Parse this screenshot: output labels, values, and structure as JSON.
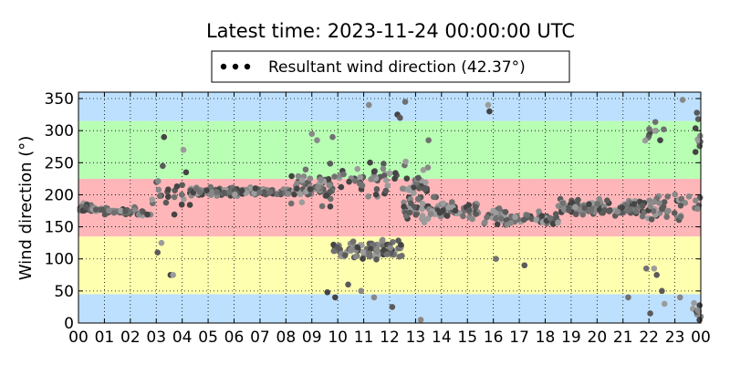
{
  "chart_data": {
    "type": "scatter",
    "title": "Latest time: 2023-11-24 00:00:00 UTC",
    "xlabel": "",
    "ylabel": "Wind direction (°)",
    "xlim": [
      0,
      24
    ],
    "ylim": [
      0,
      360
    ],
    "grid": true,
    "legend": {
      "placement": "top-center",
      "label": "Resultant wind direction (42.37°)"
    },
    "x_tick_labels": [
      "00",
      "01",
      "02",
      "03",
      "04",
      "05",
      "06",
      "07",
      "08",
      "09",
      "10",
      "11",
      "12",
      "13",
      "14",
      "15",
      "16",
      "17",
      "18",
      "19",
      "20",
      "21",
      "22",
      "23",
      "00"
    ],
    "y_ticks": [
      0,
      50,
      100,
      150,
      200,
      250,
      300,
      350
    ],
    "bands": [
      {
        "from": 0,
        "to": 45,
        "color": "#bde0fe"
      },
      {
        "from": 45,
        "to": 135,
        "color": "#ffffb0"
      },
      {
        "from": 135,
        "to": 225,
        "color": "#ffb6b9"
      },
      {
        "from": 225,
        "to": 315,
        "color": "#b8ffb4"
      },
      {
        "from": 315,
        "to": 360,
        "color": "#bde0fe"
      }
    ],
    "series": [
      {
        "name": "Resultant wind direction (42.37°)",
        "marker_colors": [
          "#444444",
          "#5a5a5a",
          "#707070",
          "#888888",
          "#9c9c9c"
        ],
        "clusters": [
          {
            "x": [
              0.0,
              0.6
            ],
            "y_center": 180,
            "y_spread": 12,
            "n": 40
          },
          {
            "x": [
              0.6,
              2.2
            ],
            "y_center": 175,
            "y_spread": 10,
            "n": 45
          },
          {
            "x": [
              2.2,
              2.8
            ],
            "y_center": 170,
            "y_spread": 8,
            "n": 10
          },
          {
            "x": [
              2.8,
              4.3
            ],
            "y_center": 200,
            "y_spread": 60,
            "n": 20
          },
          {
            "x": [
              4.3,
              6.0
            ],
            "y_center": 205,
            "y_spread": 12,
            "n": 70
          },
          {
            "x": [
              6.0,
              8.2
            ],
            "y_center": 205,
            "y_spread": 12,
            "n": 80
          },
          {
            "x": [
              8.2,
              9.8
            ],
            "y_center": 210,
            "y_spread": 45,
            "n": 60
          },
          {
            "x": [
              9.8,
              12.5
            ],
            "y_center": 115,
            "y_spread": 30,
            "n": 90
          },
          {
            "x": [
              9.3,
              13.5
            ],
            "y_center": 220,
            "y_spread": 55,
            "n": 80
          },
          {
            "x": [
              12.5,
              15.5
            ],
            "y_center": 175,
            "y_spread": 35,
            "n": 90
          },
          {
            "x": [
              15.5,
              18.5
            ],
            "y_center": 165,
            "y_spread": 25,
            "n": 70
          },
          {
            "x": [
              18.5,
              21.5
            ],
            "y_center": 180,
            "y_spread": 22,
            "n": 110
          },
          {
            "x": [
              21.5,
              24.0
            ],
            "y_center": 180,
            "y_spread": 40,
            "n": 50
          },
          {
            "x": [
              21.8,
              22.6
            ],
            "y_center": 300,
            "y_spread": 30,
            "n": 10
          },
          {
            "x": [
              23.6,
              24.0
            ],
            "y_center": 290,
            "y_spread": 40,
            "n": 8
          },
          {
            "x": [
              23.6,
              24.0
            ],
            "y_center": 20,
            "y_spread": 20,
            "n": 8
          }
        ],
        "points": [
          [
            3.05,
            110
          ],
          [
            3.2,
            125
          ],
          [
            3.55,
            75
          ],
          [
            3.65,
            75
          ],
          [
            3.25,
            245
          ],
          [
            3.3,
            290
          ],
          [
            4.05,
            270
          ],
          [
            4.15,
            235
          ],
          [
            9.6,
            48
          ],
          [
            9.9,
            40
          ],
          [
            10.4,
            60
          ],
          [
            10.9,
            50
          ],
          [
            11.4,
            40
          ],
          [
            12.1,
            25
          ],
          [
            13.2,
            5
          ],
          [
            12.3,
            325
          ],
          [
            12.6,
            345
          ],
          [
            11.2,
            340
          ],
          [
            9.0,
            295
          ],
          [
            9.2,
            285
          ],
          [
            9.8,
            290
          ],
          [
            12.4,
            320
          ],
          [
            13.5,
            285
          ],
          [
            15.8,
            340
          ],
          [
            15.85,
            330
          ],
          [
            16.1,
            100
          ],
          [
            17.2,
            90
          ],
          [
            21.2,
            40
          ],
          [
            22.05,
            15
          ],
          [
            22.5,
            50
          ],
          [
            22.6,
            30
          ],
          [
            21.9,
            85
          ],
          [
            22.2,
            85
          ],
          [
            22.3,
            75
          ],
          [
            23.2,
            40
          ],
          [
            23.3,
            348
          ],
          [
            23.85,
            328
          ],
          [
            23.9,
            318
          ],
          [
            24.0,
            10
          ],
          [
            23.95,
            5
          ]
        ]
      }
    ]
  }
}
